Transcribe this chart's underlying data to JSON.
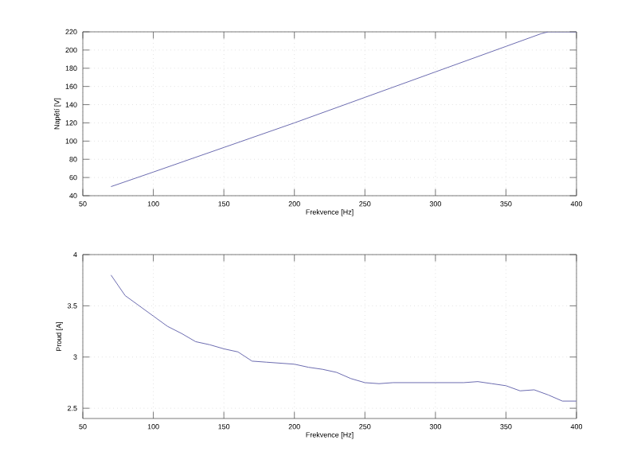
{
  "chart_data": [
    {
      "type": "line",
      "xlabel": "Frekvence [Hz]",
      "ylabel": "Napětí [V]",
      "grid": true,
      "xlim": [
        50,
        400
      ],
      "ylim": [
        40,
        220
      ],
      "xticks": [
        50,
        100,
        150,
        200,
        250,
        300,
        350,
        400
      ],
      "yticks": [
        40,
        60,
        80,
        100,
        120,
        140,
        160,
        180,
        200,
        220
      ],
      "series": [
        {
          "color": "#6b6bb0",
          "x": [
            70,
            100,
            150,
            200,
            250,
            300,
            350,
            375,
            380,
            400
          ],
          "values": [
            50,
            66,
            93,
            120,
            148,
            176,
            204,
            218,
            220,
            220
          ]
        }
      ]
    },
    {
      "type": "line",
      "xlabel": "Frekvence [Hz]",
      "ylabel": "Proud [A]",
      "grid": true,
      "xlim": [
        50,
        400
      ],
      "ylim": [
        2.4,
        4
      ],
      "xticks": [
        50,
        100,
        150,
        200,
        250,
        300,
        350,
        400
      ],
      "yticks": [
        2.5,
        3,
        3.5,
        4
      ],
      "series": [
        {
          "color": "#6b6bb0",
          "x": [
            70,
            80,
            90,
            100,
            110,
            120,
            130,
            140,
            150,
            160,
            170,
            180,
            190,
            200,
            210,
            220,
            230,
            240,
            250,
            260,
            270,
            300,
            320,
            330,
            340,
            350,
            360,
            370,
            380,
            390,
            400
          ],
          "values": [
            3.8,
            3.6,
            3.5,
            3.4,
            3.3,
            3.23,
            3.15,
            3.12,
            3.08,
            3.05,
            2.96,
            2.95,
            2.94,
            2.93,
            2.9,
            2.88,
            2.85,
            2.79,
            2.75,
            2.74,
            2.75,
            2.75,
            2.75,
            2.76,
            2.74,
            2.72,
            2.67,
            2.68,
            2.63,
            2.57,
            2.57
          ]
        }
      ]
    }
  ]
}
